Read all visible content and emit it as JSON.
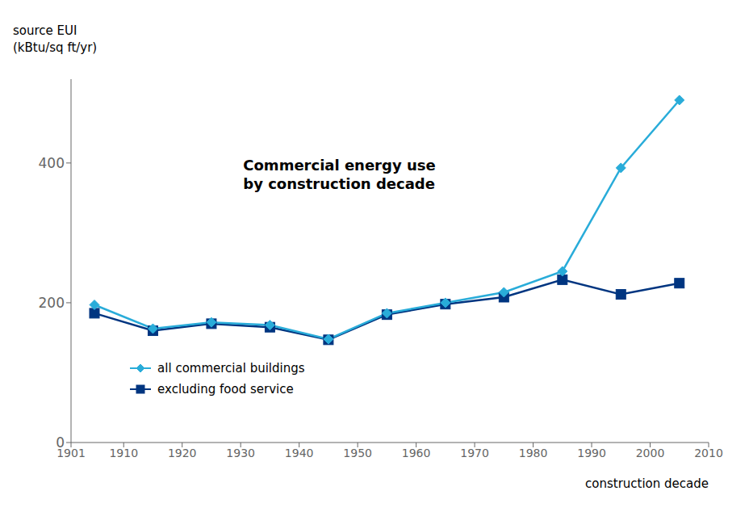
{
  "chart_data": {
    "type": "line",
    "annotation": [
      "Commercial energy use",
      "by construction decade"
    ],
    "xlabel": "construction decade",
    "ylabel": [
      "source EUI",
      "(kBtu/sq ft/yr)"
    ],
    "x": [
      1905,
      1915,
      1925,
      1935,
      1945,
      1955,
      1965,
      1975,
      1985,
      1995,
      2005
    ],
    "series": [
      {
        "name": "all commercial buildings",
        "color": "#29acd9",
        "marker": "diamond",
        "values": [
          197,
          163,
          172,
          168,
          148,
          185,
          200,
          215,
          245,
          393,
          490
        ]
      },
      {
        "name": "excluding food service",
        "color": "#003580",
        "marker": "square",
        "values": [
          185,
          160,
          170,
          165,
          147,
          183,
          198,
          208,
          233,
          212,
          228
        ]
      }
    ],
    "xlim": [
      1901,
      2010
    ],
    "xticks": [
      1901,
      1910,
      1920,
      1930,
      1940,
      1950,
      1960,
      1970,
      1980,
      1990,
      2000,
      2010
    ],
    "ylim": [
      0,
      520
    ],
    "yticks": [
      0,
      200,
      400
    ],
    "legend": "lower left",
    "grid": false
  }
}
